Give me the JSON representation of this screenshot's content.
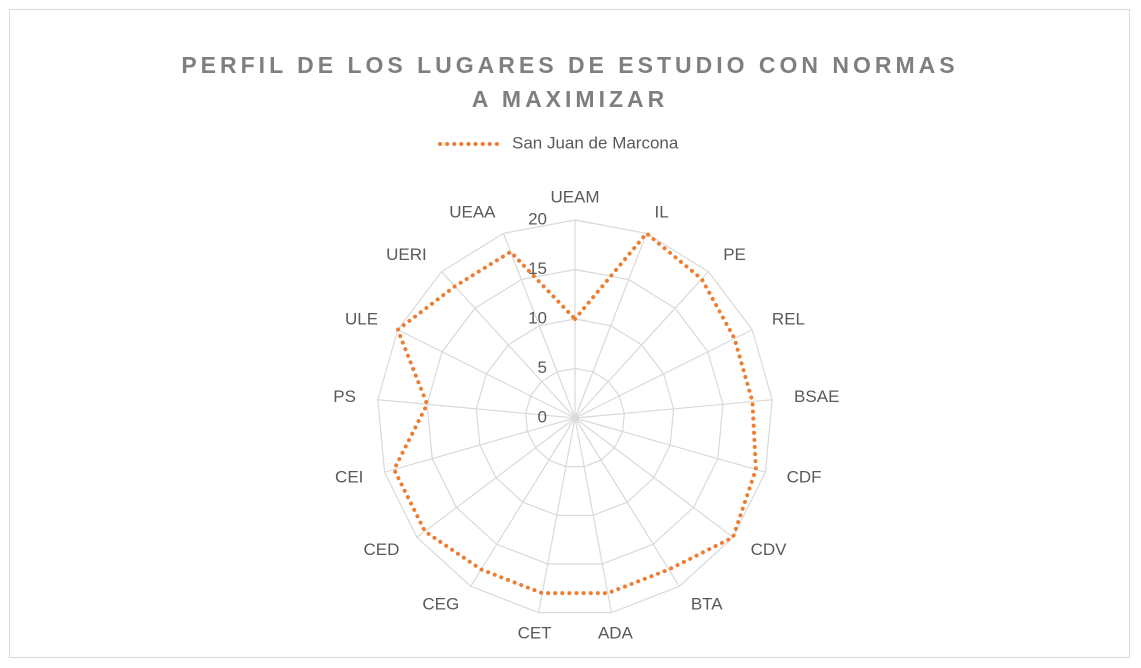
{
  "chart_data": {
    "type": "radar",
    "title": "PERFIL DE LOS LUGARES DE ESTUDIO CON NORMAS A MAXIMIZAR",
    "categories": [
      "UEAM",
      "IL",
      "PE",
      "REL",
      "BSAE",
      "CDF",
      "CDV",
      "BTA",
      "ADA",
      "CET",
      "CEG",
      "CED",
      "CEI",
      "PS",
      "ULE",
      "UERI",
      "UEAA"
    ],
    "series": [
      {
        "name": "San Juan de Marcona",
        "color": "#ed7d31",
        "values": [
          10,
          20,
          19,
          18,
          18,
          19,
          20,
          18,
          18,
          18,
          18,
          19,
          19,
          15,
          20,
          18,
          18
        ]
      }
    ],
    "ylim": [
      0,
      20
    ],
    "yticks": [
      0,
      5,
      10,
      15,
      20
    ],
    "grid": true,
    "legend": "top"
  }
}
